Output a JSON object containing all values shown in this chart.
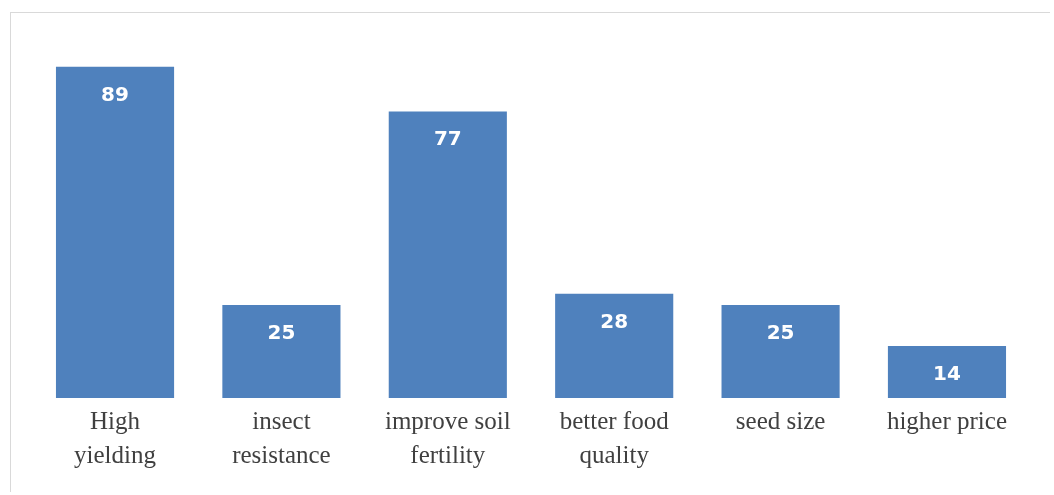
{
  "chart_data": {
    "type": "bar",
    "categories": [
      "High yielding",
      "insect resistance",
      "improve soil fertility",
      "better food quality",
      "seed size",
      "higher price"
    ],
    "values": [
      89,
      25,
      77,
      28,
      25,
      14
    ],
    "color": "#4f81bd",
    "data_labels": true,
    "grid": false
  }
}
